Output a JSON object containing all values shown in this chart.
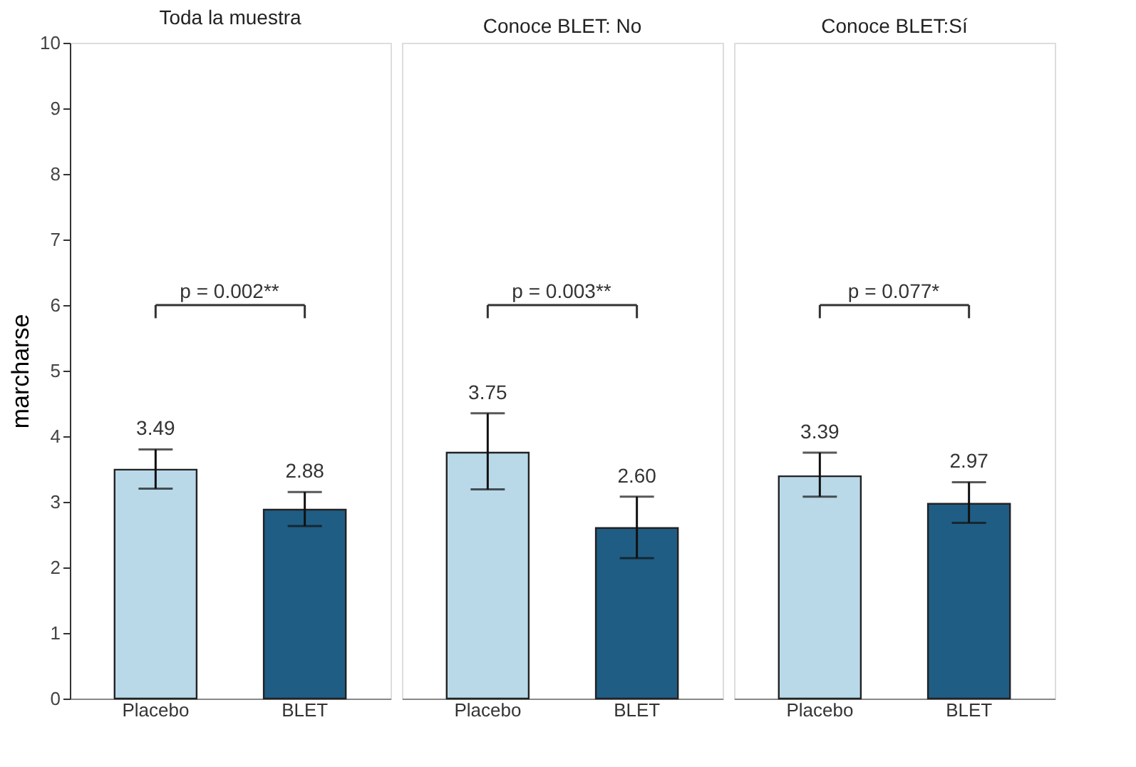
{
  "chart_data": [
    {
      "type": "bar",
      "title": "Toda la muestra",
      "ylabel": "marcharse",
      "categories": [
        "Placebo",
        "BLET"
      ],
      "values": [
        3.49,
        2.88
      ],
      "colors": [
        "#b9d9e9",
        "#1f5d84"
      ],
      "errors": [
        [
          3.2,
          3.8
        ],
        [
          2.63,
          3.15
        ]
      ],
      "value_labels": [
        "3.49",
        "2.88"
      ],
      "ylim": [
        0,
        10
      ],
      "yticks": [
        0,
        1,
        2,
        3,
        4,
        5,
        6,
        7,
        8,
        9,
        10
      ],
      "annotations": [
        "p = 0.002**"
      ],
      "grid": false
    },
    {
      "type": "bar",
      "title": "Conoce BLET: No",
      "categories": [
        "Placebo",
        "BLET"
      ],
      "values": [
        3.75,
        2.6
      ],
      "colors": [
        "#b9d9e9",
        "#1f5d84"
      ],
      "errors": [
        [
          3.19,
          4.35
        ],
        [
          2.14,
          3.08
        ]
      ],
      "value_labels": [
        "3.75",
        "2.60"
      ],
      "ylim": [
        0,
        10
      ],
      "tick_labels": "x",
      "annotations": [
        "p = 0.003**"
      ],
      "grid": false
    },
    {
      "type": "bar",
      "title": "Conoce BLET:Sí",
      "categories": [
        "Placebo",
        "BLET"
      ],
      "values": [
        3.39,
        2.97
      ],
      "colors": [
        "#b9d9e9",
        "#1f5d84"
      ],
      "errors": [
        [
          3.08,
          3.75
        ],
        [
          2.68,
          3.3
        ]
      ],
      "value_labels": [
        "3.39",
        "2.97"
      ],
      "ylim": [
        0,
        10
      ],
      "tick_labels": "x",
      "annotations": [
        "p = 0.077*"
      ],
      "grid": false
    }
  ]
}
